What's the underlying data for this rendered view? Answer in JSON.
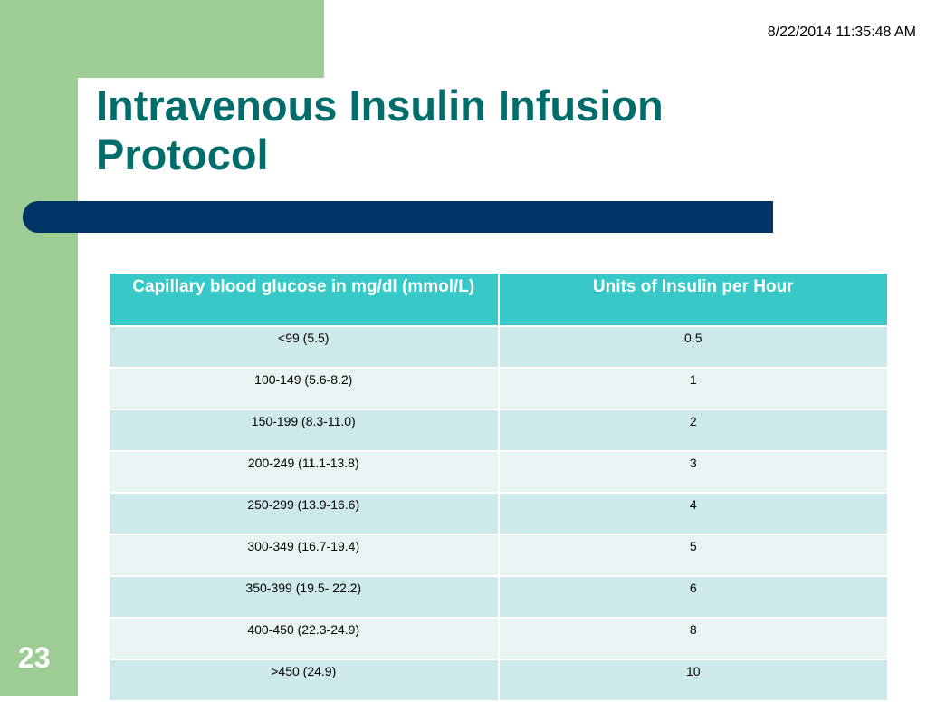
{
  "slide": {
    "timestamp": "8/22/2014 11:35:48 AM",
    "title": "Intravenous Insulin Infusion Protocol",
    "slide_number": "23"
  },
  "table": {
    "headers": [
      "Capillary blood glucose in mg/dl (mmol/L)",
      "Units of Insulin per Hour"
    ],
    "rows": [
      [
        "<99 (5.5)",
        "0.5"
      ],
      [
        "100-149 (5.6-8.2)",
        "1"
      ],
      [
        "150-199 (8.3-11.0)",
        "2"
      ],
      [
        "200-249 (11.1-13.8)",
        "3"
      ],
      [
        "250-299 (13.9-16.6)",
        "4"
      ],
      [
        "300-349 (16.7-19.4)",
        "5"
      ],
      [
        "350-399 (19.5- 22.2)",
        "6"
      ],
      [
        "400-450 (22.3-24.9)",
        "8"
      ],
      [
        ">450 (24.9)",
        "10"
      ]
    ]
  },
  "colors": {
    "title": "#006c6c",
    "accent_green": "#9dcc95",
    "title_bar": "#003366",
    "table_header": "#36c9c8",
    "row_dark": "#cde9e9",
    "row_light": "#e8f4f4"
  }
}
